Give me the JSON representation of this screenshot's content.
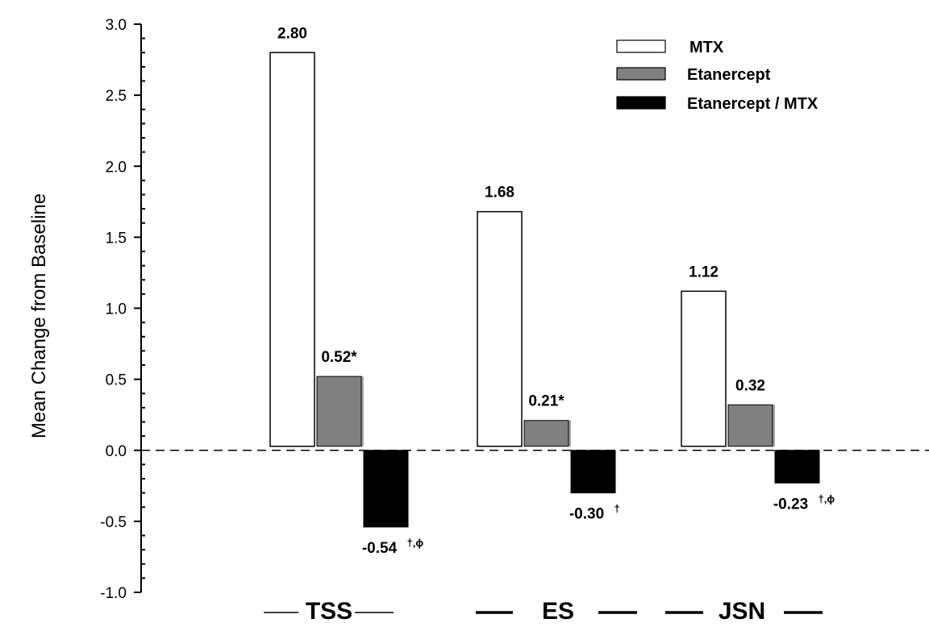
{
  "chart_data": {
    "type": "bar",
    "title": "",
    "xlabel": "",
    "ylabel": "Mean Change from Baseline",
    "ylim": [
      -1.0,
      3.0
    ],
    "yticks": [
      "-1.0",
      "-0.5",
      "0.0",
      "0.5",
      "1.0",
      "1.5",
      "2.0",
      "2.5",
      "3.0"
    ],
    "categories": [
      "TSS",
      "ES",
      "JSN"
    ],
    "reference_line": {
      "y": 0.0,
      "style": "dashed"
    },
    "legend_position": "top-right",
    "grid": false,
    "series": [
      {
        "name": "MTX",
        "color": "#ffffff",
        "values": [
          2.8,
          1.68,
          1.12
        ],
        "labels": [
          "2.80",
          "1.68",
          "1.12"
        ],
        "label_marks": [
          "",
          "",
          ""
        ]
      },
      {
        "name": "Etanercept",
        "color": "#808080",
        "values": [
          0.52,
          0.21,
          0.32
        ],
        "labels": [
          "0.52*",
          "0.21*",
          "0.32"
        ],
        "label_marks": [
          "",
          "",
          ""
        ]
      },
      {
        "name": "Etanercept / MTX",
        "color": "#000000",
        "values": [
          -0.54,
          -0.3,
          -0.23
        ],
        "labels": [
          "-0.54",
          "-0.30",
          "-0.23"
        ],
        "label_marks": [
          "†,ϕ",
          "†",
          "†,ϕ"
        ]
      }
    ]
  }
}
